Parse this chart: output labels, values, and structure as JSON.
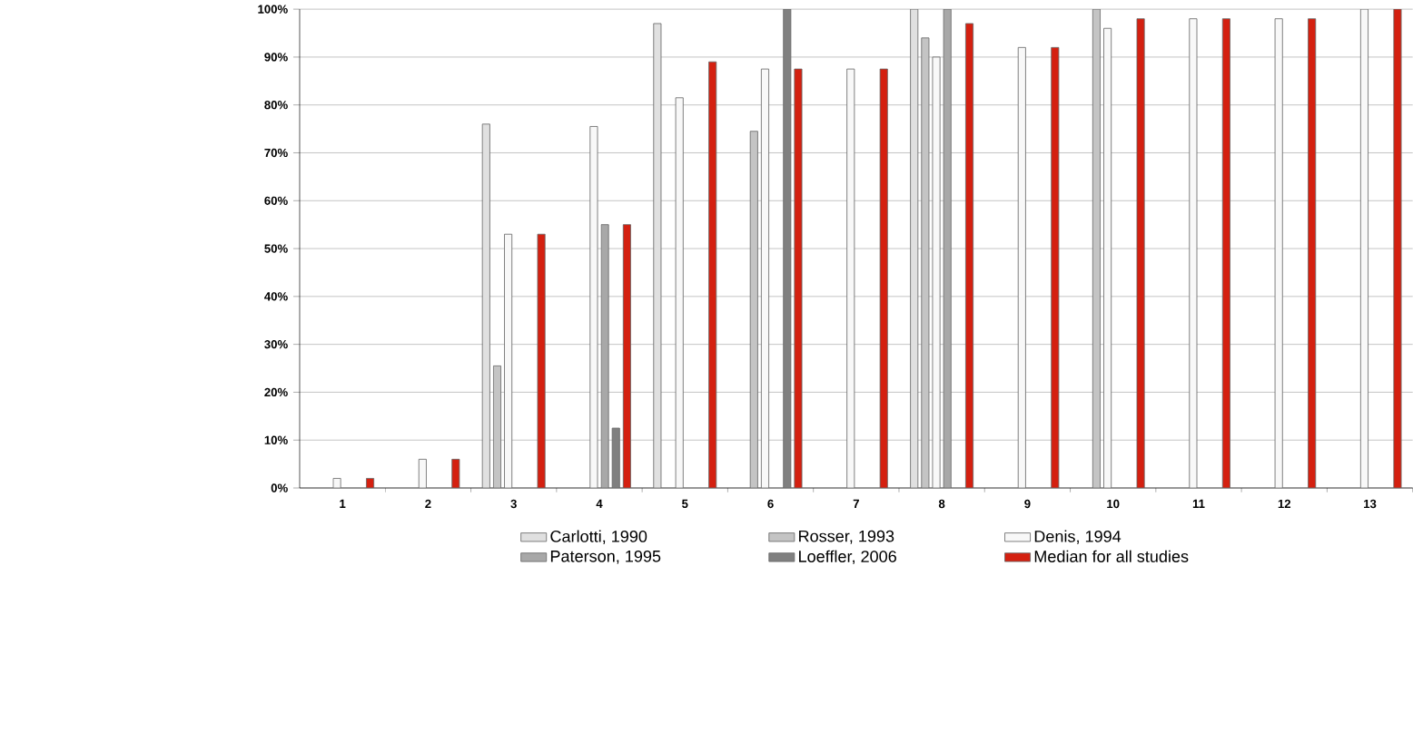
{
  "chart_data": {
    "type": "bar",
    "categories": [
      "1",
      "2",
      "3",
      "4",
      "5",
      "6",
      "7",
      "8",
      "9",
      "10",
      "11",
      "12",
      "13"
    ],
    "series": [
      {
        "name": "Carlotti, 1990",
        "color": "#e0e0e0",
        "values": [
          null,
          null,
          76,
          null,
          97,
          null,
          null,
          100,
          null,
          null,
          null,
          null,
          null
        ]
      },
      {
        "name": "Rosser, 1993",
        "color": "#c4c4c4",
        "values": [
          null,
          null,
          25.5,
          null,
          null,
          74.5,
          null,
          94,
          null,
          100,
          null,
          null,
          null
        ]
      },
      {
        "name": "Denis, 1994",
        "color": "#f8f8f8",
        "values": [
          2,
          6,
          53,
          75.5,
          81.5,
          87.5,
          87.5,
          90,
          92,
          96,
          98,
          98,
          100
        ]
      },
      {
        "name": "Paterson, 1995",
        "color": "#a8a8a8",
        "values": [
          null,
          null,
          null,
          55,
          null,
          null,
          null,
          100,
          null,
          null,
          null,
          null,
          null
        ]
      },
      {
        "name": "Loeffler, 2006",
        "color": "#808080",
        "values": [
          null,
          null,
          null,
          12.5,
          null,
          100,
          null,
          null,
          null,
          null,
          null,
          null,
          null
        ]
      },
      {
        "name": "Median for all studies",
        "color": "#d42010",
        "values": [
          2,
          6,
          53,
          55,
          89,
          87.5,
          87.5,
          97,
          92,
          98,
          98,
          98,
          100
        ]
      }
    ],
    "ylim": [
      0,
      100
    ],
    "yticks": [
      {
        "value": 0,
        "label": "0%"
      },
      {
        "value": 10,
        "label": "10%"
      },
      {
        "value": 20,
        "label": "20%"
      },
      {
        "value": 30,
        "label": "30%"
      },
      {
        "value": 40,
        "label": "40%"
      },
      {
        "value": 50,
        "label": "50%"
      },
      {
        "value": 60,
        "label": "60%"
      },
      {
        "value": 70,
        "label": "70%"
      },
      {
        "value": 80,
        "label": "80%"
      },
      {
        "value": 90,
        "label": "90%"
      },
      {
        "value": 100,
        "label": "100%"
      }
    ],
    "grid": "y",
    "legend": "bottom"
  }
}
